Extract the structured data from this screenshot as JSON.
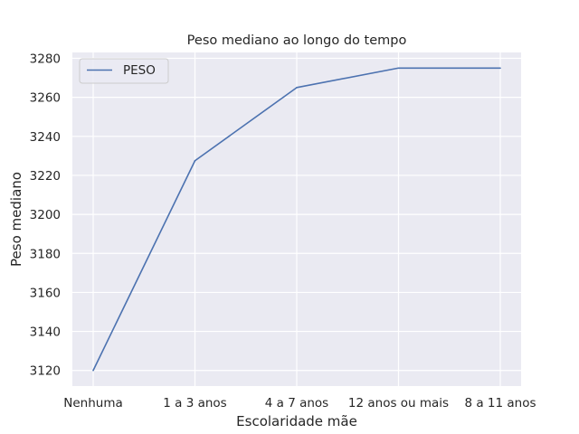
{
  "chart_data": {
    "type": "line",
    "title": "Peso mediano ao longo do tempo",
    "xlabel": "Escolaridade mãe",
    "ylabel": "Peso mediano",
    "categories": [
      "Nenhuma",
      "1 a 3 anos",
      "4 a 7 anos",
      "12 anos ou mais",
      "8 a 11 anos"
    ],
    "series": [
      {
        "name": "PESO",
        "values": [
          3120,
          3227.5,
          3265,
          3275,
          3275
        ],
        "color": "#4c72b0"
      }
    ],
    "yticks": [
      3120,
      3140,
      3160,
      3180,
      3200,
      3220,
      3240,
      3260,
      3280
    ],
    "ylim": [
      3112,
      3283
    ],
    "grid": true,
    "legend": "top-left",
    "background": "#eaeaf2"
  }
}
